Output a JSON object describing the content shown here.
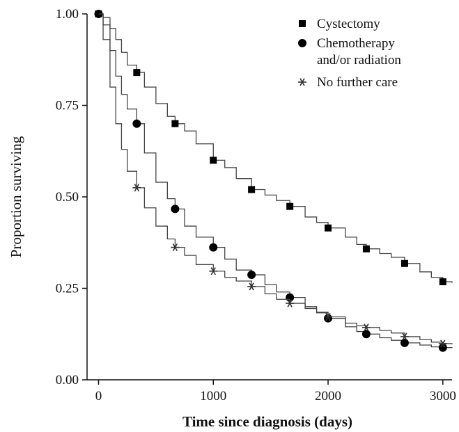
{
  "chart_data": {
    "type": "line",
    "xlabel": "Time since diagnosis (days)",
    "ylabel": "Proportion surviving",
    "xlim": [
      -100,
      3080
    ],
    "ylim": [
      0,
      1
    ],
    "x_ticks": [
      0,
      1000,
      2000,
      3000
    ],
    "x_tick_labels": [
      "0",
      "1000",
      "2000",
      "3000"
    ],
    "y_ticks": [
      0,
      0.25,
      0.5,
      0.75,
      1
    ],
    "y_tick_labels": [
      "0.00",
      "0.25",
      "0.50",
      "0.75",
      "1.00"
    ],
    "grid": false,
    "legend_position": "top-right",
    "line_color": "#444444",
    "marker_color": "#000000",
    "series": [
      {
        "name": "Cystectomy",
        "marker": "square",
        "points": [
          [
            0,
            1.0
          ],
          [
            40,
            0.99
          ],
          [
            100,
            0.96
          ],
          [
            150,
            0.93
          ],
          [
            200,
            0.895
          ],
          [
            250,
            0.86
          ],
          [
            333,
            0.84
          ],
          [
            400,
            0.8
          ],
          [
            500,
            0.755
          ],
          [
            600,
            0.72
          ],
          [
            667,
            0.7
          ],
          [
            750,
            0.68
          ],
          [
            850,
            0.645
          ],
          [
            1000,
            0.6
          ],
          [
            1100,
            0.58
          ],
          [
            1200,
            0.55
          ],
          [
            1333,
            0.52
          ],
          [
            1450,
            0.505
          ],
          [
            1550,
            0.49
          ],
          [
            1667,
            0.474
          ],
          [
            1800,
            0.445
          ],
          [
            1900,
            0.43
          ],
          [
            2000,
            0.415
          ],
          [
            2150,
            0.39
          ],
          [
            2250,
            0.37
          ],
          [
            2333,
            0.358
          ],
          [
            2450,
            0.345
          ],
          [
            2550,
            0.335
          ],
          [
            2667,
            0.318
          ],
          [
            2800,
            0.295
          ],
          [
            2900,
            0.28
          ],
          [
            3000,
            0.268
          ],
          [
            3080,
            0.265
          ]
        ],
        "marker_x": [
          0,
          333,
          667,
          1000,
          1333,
          1667,
          2000,
          2333,
          2667,
          3000
        ]
      },
      {
        "name": "Chemotherapy and/or radiation",
        "legend_lines": [
          "Chemotherapy",
          "and/or radiation"
        ],
        "marker": "circle",
        "points": [
          [
            0,
            1.0
          ],
          [
            40,
            0.97
          ],
          [
            100,
            0.9
          ],
          [
            150,
            0.83
          ],
          [
            200,
            0.78
          ],
          [
            250,
            0.74
          ],
          [
            333,
            0.7
          ],
          [
            400,
            0.62
          ],
          [
            500,
            0.54
          ],
          [
            600,
            0.495
          ],
          [
            667,
            0.467
          ],
          [
            750,
            0.42
          ],
          [
            850,
            0.39
          ],
          [
            1000,
            0.362
          ],
          [
            1100,
            0.33
          ],
          [
            1200,
            0.3
          ],
          [
            1333,
            0.287
          ],
          [
            1450,
            0.26
          ],
          [
            1550,
            0.24
          ],
          [
            1667,
            0.225
          ],
          [
            1800,
            0.2
          ],
          [
            1900,
            0.185
          ],
          [
            2000,
            0.168
          ],
          [
            2150,
            0.145
          ],
          [
            2250,
            0.132
          ],
          [
            2333,
            0.125
          ],
          [
            2450,
            0.115
          ],
          [
            2550,
            0.108
          ],
          [
            2667,
            0.101
          ],
          [
            2800,
            0.095
          ],
          [
            2900,
            0.09
          ],
          [
            3000,
            0.088
          ],
          [
            3080,
            0.087
          ]
        ],
        "marker_x": [
          0,
          333,
          667,
          1000,
          1333,
          1667,
          2000,
          2333,
          2667,
          3000
        ]
      },
      {
        "name": "No further care",
        "marker": "star",
        "points": [
          [
            0,
            1.0
          ],
          [
            40,
            0.93
          ],
          [
            100,
            0.8
          ],
          [
            150,
            0.7
          ],
          [
            200,
            0.63
          ],
          [
            250,
            0.57
          ],
          [
            333,
            0.525
          ],
          [
            400,
            0.47
          ],
          [
            500,
            0.42
          ],
          [
            600,
            0.385
          ],
          [
            667,
            0.362
          ],
          [
            750,
            0.34
          ],
          [
            850,
            0.315
          ],
          [
            1000,
            0.297
          ],
          [
            1100,
            0.28
          ],
          [
            1200,
            0.27
          ],
          [
            1333,
            0.255
          ],
          [
            1450,
            0.235
          ],
          [
            1550,
            0.22
          ],
          [
            1667,
            0.209
          ],
          [
            1800,
            0.195
          ],
          [
            1900,
            0.183
          ],
          [
            2000,
            0.172
          ],
          [
            2150,
            0.155
          ],
          [
            2250,
            0.148
          ],
          [
            2333,
            0.143
          ],
          [
            2450,
            0.135
          ],
          [
            2550,
            0.128
          ],
          [
            2667,
            0.118
          ],
          [
            2800,
            0.11
          ],
          [
            2900,
            0.103
          ],
          [
            3000,
            0.099
          ],
          [
            3080,
            0.097
          ]
        ],
        "marker_x": [
          333,
          667,
          1000,
          1333,
          1667,
          2000,
          2333,
          2667,
          3000
        ]
      }
    ]
  }
}
